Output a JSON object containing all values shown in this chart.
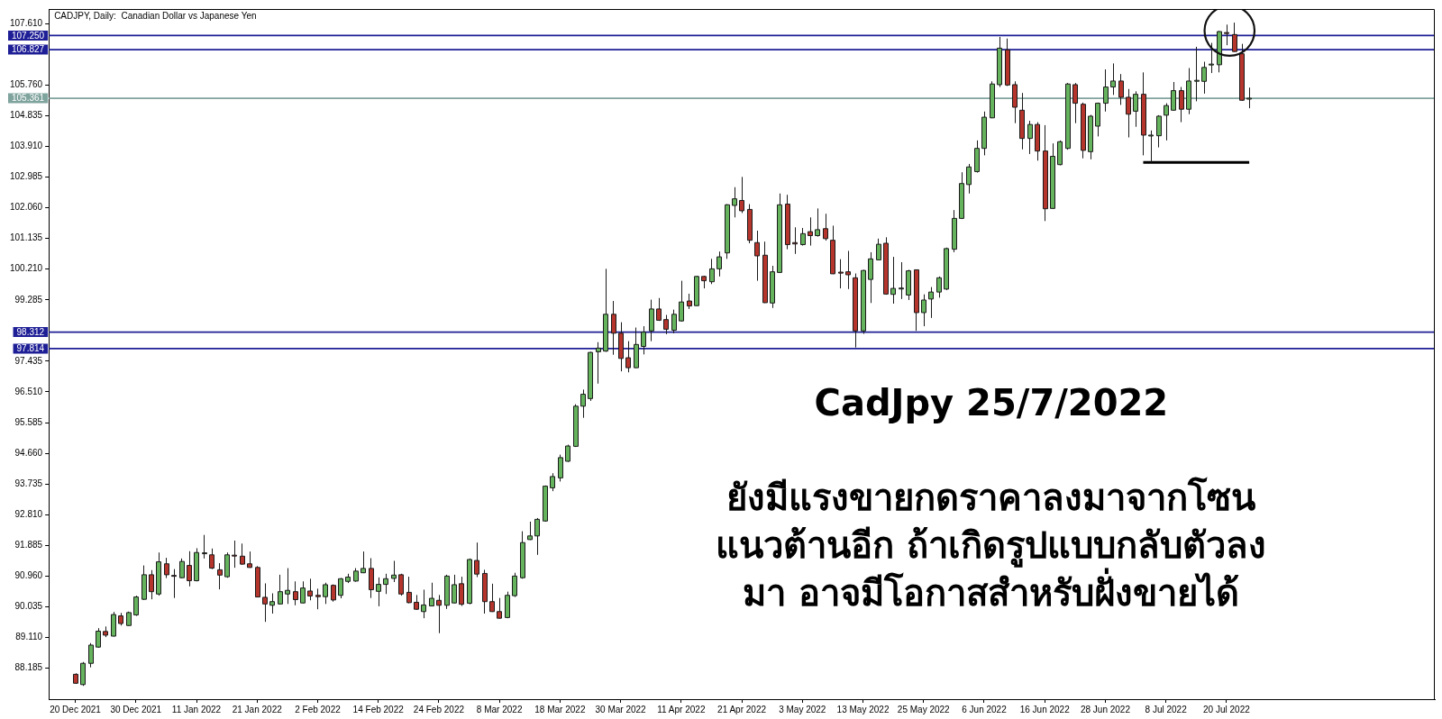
{
  "chart_data": {
    "type": "candlestick",
    "title": "CADJPY, Daily:  Canadian Dollar vs Japanese Yen",
    "categories": [
      "20 Dec 2021",
      null,
      null,
      null,
      null,
      null,
      null,
      null,
      "30 Dec 2021",
      null,
      null,
      null,
      null,
      null,
      null,
      null,
      "11 Jan 2022",
      null,
      null,
      null,
      null,
      null,
      null,
      null,
      "21 Jan 2022",
      null,
      null,
      null,
      null,
      null,
      null,
      null,
      "2 Feb 2022",
      null,
      null,
      null,
      null,
      null,
      null,
      null,
      "14 Feb 2022",
      null,
      null,
      null,
      null,
      null,
      null,
      null,
      "24 Feb 2022",
      null,
      null,
      null,
      null,
      null,
      null,
      null,
      "8 Mar 2022",
      null,
      null,
      null,
      null,
      null,
      null,
      null,
      "18 Mar 2022",
      null,
      null,
      null,
      null,
      null,
      null,
      null,
      "30 Mar 2022",
      null,
      null,
      null,
      null,
      null,
      null,
      null,
      "11 Apr 2022",
      null,
      null,
      null,
      null,
      null,
      null,
      null,
      "21 Apr 2022",
      null,
      null,
      null,
      null,
      null,
      null,
      null,
      "3 May 2022",
      null,
      null,
      null,
      null,
      null,
      null,
      null,
      "13 May 2022",
      null,
      null,
      null,
      null,
      null,
      null,
      null,
      "25 May 2022",
      null,
      null,
      null,
      null,
      null,
      null,
      null,
      "6 Jun 2022",
      null,
      null,
      null,
      null,
      null,
      null,
      null,
      "16 Jun 2022",
      null,
      null,
      null,
      null,
      null,
      null,
      null,
      "28 Jun 2022",
      null,
      null,
      null,
      null,
      null,
      null,
      null,
      "8 Jul 2022",
      null,
      null,
      null,
      null,
      null,
      null,
      null,
      "20 Jul 2022",
      null,
      null,
      null
    ],
    "ohlc": [
      [
        88.0,
        88.03,
        87.71,
        87.73
      ],
      [
        87.69,
        88.37,
        87.65,
        88.33
      ],
      [
        88.33,
        88.94,
        88.21,
        88.88
      ],
      [
        88.82,
        89.39,
        88.8,
        89.3
      ],
      [
        89.29,
        89.44,
        89.12,
        89.18
      ],
      [
        89.15,
        89.88,
        89.14,
        89.8
      ],
      [
        89.76,
        89.85,
        89.47,
        89.53
      ],
      [
        89.47,
        89.89,
        89.46,
        89.86
      ],
      [
        89.79,
        90.37,
        89.76,
        90.33
      ],
      [
        90.26,
        91.28,
        90.24,
        91.0
      ],
      [
        91.0,
        91.14,
        90.26,
        90.49
      ],
      [
        90.42,
        91.67,
        90.37,
        91.39
      ],
      [
        91.33,
        91.51,
        90.9,
        91.0
      ],
      [
        90.98,
        91.17,
        90.3,
        90.96
      ],
      [
        90.91,
        91.49,
        90.9,
        91.4
      ],
      [
        91.28,
        91.71,
        90.65,
        90.82
      ],
      [
        90.82,
        91.8,
        90.8,
        91.67
      ],
      [
        91.64,
        92.2,
        91.49,
        91.66
      ],
      [
        91.6,
        91.79,
        91.17,
        91.2
      ],
      [
        91.15,
        91.35,
        90.56,
        90.99
      ],
      [
        90.94,
        91.67,
        90.91,
        91.6
      ],
      [
        91.59,
        92.03,
        91.21,
        91.57
      ],
      [
        91.56,
        91.94,
        91.3,
        91.32
      ],
      [
        91.33,
        91.7,
        91.21,
        91.22
      ],
      [
        91.22,
        91.26,
        90.32,
        90.33
      ],
      [
        90.32,
        90.74,
        89.58,
        90.12
      ],
      [
        90.08,
        90.44,
        89.83,
        90.19
      ],
      [
        90.12,
        91.0,
        90.1,
        90.49
      ],
      [
        90.42,
        91.2,
        90.12,
        90.53
      ],
      [
        90.49,
        90.8,
        90.08,
        90.25
      ],
      [
        90.15,
        90.8,
        90.14,
        90.6
      ],
      [
        90.51,
        90.88,
        90.23,
        90.36
      ],
      [
        90.38,
        90.58,
        89.96,
        90.34
      ],
      [
        90.34,
        90.76,
        90.12,
        90.7
      ],
      [
        90.68,
        90.71,
        90.19,
        90.24
      ],
      [
        90.38,
        90.9,
        90.29,
        90.88
      ],
      [
        90.8,
        91.03,
        90.75,
        90.93
      ],
      [
        90.81,
        91.2,
        90.79,
        91.11
      ],
      [
        91.06,
        91.7,
        91.05,
        91.19
      ],
      [
        91.19,
        91.5,
        90.3,
        90.55
      ],
      [
        90.5,
        90.92,
        90.05,
        90.71
      ],
      [
        90.71,
        91.03,
        90.42,
        90.88
      ],
      [
        90.89,
        91.42,
        90.78,
        90.99
      ],
      [
        91.0,
        91.03,
        90.37,
        90.42
      ],
      [
        90.47,
        90.94,
        90.14,
        90.16
      ],
      [
        90.17,
        90.39,
        89.94,
        89.96
      ],
      [
        89.89,
        90.55,
        89.69,
        90.09
      ],
      [
        90.06,
        90.76,
        90.05,
        90.29
      ],
      [
        90.23,
        90.39,
        89.24,
        90.08
      ],
      [
        90.08,
        91.0,
        89.97,
        90.96
      ],
      [
        90.15,
        91.0,
        90.14,
        90.7
      ],
      [
        90.73,
        90.94,
        90.06,
        90.11
      ],
      [
        90.14,
        91.49,
        90.11,
        91.46
      ],
      [
        91.43,
        91.97,
        90.93,
        91.02
      ],
      [
        91.04,
        91.15,
        89.83,
        90.19
      ],
      [
        90.19,
        90.73,
        89.88,
        89.89
      ],
      [
        89.89,
        90.3,
        89.68,
        89.69
      ],
      [
        89.71,
        90.49,
        89.69,
        90.38
      ],
      [
        90.37,
        91.06,
        90.33,
        90.96
      ],
      [
        90.91,
        92.31,
        90.88,
        91.97
      ],
      [
        92.06,
        92.6,
        92.05,
        92.17
      ],
      [
        92.17,
        92.71,
        91.6,
        92.67
      ],
      [
        92.62,
        93.69,
        92.6,
        93.67
      ],
      [
        93.62,
        94.06,
        93.52,
        93.96
      ],
      [
        93.92,
        94.62,
        93.81,
        94.53
      ],
      [
        94.42,
        94.92,
        94.4,
        94.88
      ],
      [
        94.87,
        96.14,
        94.85,
        96.08
      ],
      [
        96.08,
        96.58,
        95.73,
        96.44
      ],
      [
        96.31,
        97.72,
        96.24,
        97.7
      ],
      [
        97.72,
        98.01,
        96.76,
        97.83
      ],
      [
        97.74,
        100.22,
        97.72,
        98.85
      ],
      [
        98.85,
        99.25,
        97.63,
        98.28
      ],
      [
        98.28,
        98.61,
        97.13,
        97.52
      ],
      [
        97.54,
        98.04,
        97.1,
        97.24
      ],
      [
        97.24,
        98.45,
        97.23,
        97.94
      ],
      [
        97.88,
        98.49,
        97.64,
        98.31
      ],
      [
        98.35,
        99.29,
        98.04,
        99.01
      ],
      [
        99.01,
        99.34,
        98.65,
        98.67
      ],
      [
        98.69,
        98.83,
        98.25,
        98.4
      ],
      [
        98.37,
        98.99,
        98.28,
        98.85
      ],
      [
        98.65,
        99.86,
        98.63,
        99.22
      ],
      [
        99.25,
        99.47,
        99.01,
        99.1
      ],
      [
        99.11,
        100.01,
        99.1,
        99.99
      ],
      [
        99.99,
        100.01,
        99.63,
        99.86
      ],
      [
        99.83,
        100.52,
        99.76,
        100.22
      ],
      [
        100.22,
        100.74,
        99.99,
        100.58
      ],
      [
        100.7,
        102.17,
        100.52,
        102.15
      ],
      [
        102.13,
        102.68,
        101.77,
        102.33
      ],
      [
        102.28,
        102.99,
        101.9,
        101.97
      ],
      [
        102.01,
        102.17,
        100.99,
        101.08
      ],
      [
        101.01,
        101.37,
        99.86,
        100.61
      ],
      [
        100.63,
        101.04,
        99.19,
        99.2
      ],
      [
        99.19,
        100.31,
        99.04,
        100.13
      ],
      [
        100.11,
        102.49,
        100.1,
        102.15
      ],
      [
        102.17,
        102.45,
        100.81,
        100.95
      ],
      [
        101.01,
        101.47,
        100.67,
        100.97
      ],
      [
        100.95,
        101.45,
        100.92,
        101.28
      ],
      [
        101.34,
        101.77,
        100.92,
        101.22
      ],
      [
        101.22,
        102.04,
        101.19,
        101.4
      ],
      [
        101.43,
        101.88,
        101.07,
        101.13
      ],
      [
        101.08,
        101.52,
        100.06,
        100.07
      ],
      [
        100.12,
        100.51,
        99.63,
        100.09
      ],
      [
        100.13,
        100.76,
        99.61,
        100.04
      ],
      [
        99.95,
        100.08,
        97.85,
        98.35
      ],
      [
        98.35,
        100.19,
        98.26,
        100.17
      ],
      [
        99.9,
        100.72,
        99.19,
        100.52
      ],
      [
        100.49,
        101.13,
        100.48,
        100.96
      ],
      [
        100.99,
        101.17,
        99.44,
        99.46
      ],
      [
        99.45,
        100.58,
        99.17,
        99.63
      ],
      [
        99.62,
        100.42,
        99.31,
        99.64
      ],
      [
        99.43,
        100.19,
        99.28,
        100.16
      ],
      [
        100.19,
        100.2,
        98.35,
        98.9
      ],
      [
        98.9,
        99.45,
        98.49,
        99.28
      ],
      [
        99.31,
        99.67,
        98.74,
        99.52
      ],
      [
        99.52,
        99.99,
        99.35,
        99.95
      ],
      [
        99.61,
        100.86,
        99.58,
        100.83
      ],
      [
        100.81,
        101.99,
        100.72,
        101.74
      ],
      [
        101.74,
        103.13,
        101.72,
        102.79
      ],
      [
        102.76,
        103.38,
        102.49,
        103.29
      ],
      [
        103.15,
        104.09,
        103.12,
        103.85
      ],
      [
        103.85,
        104.96,
        103.64,
        104.79
      ],
      [
        104.77,
        105.87,
        104.76,
        105.79
      ],
      [
        105.77,
        107.21,
        105.7,
        106.87
      ],
      [
        106.82,
        107.16,
        105.73,
        105.76
      ],
      [
        105.77,
        105.87,
        104.61,
        105.09
      ],
      [
        105.0,
        105.52,
        103.82,
        104.15
      ],
      [
        104.15,
        104.68,
        103.68,
        104.57
      ],
      [
        104.57,
        104.64,
        103.48,
        103.77
      ],
      [
        103.77,
        104.55,
        101.66,
        102.03
      ],
      [
        102.04,
        104.0,
        102.03,
        103.61
      ],
      [
        103.36,
        104.09,
        103.34,
        104.05
      ],
      [
        103.85,
        105.82,
        103.81,
        105.79
      ],
      [
        105.77,
        105.82,
        104.61,
        105.21
      ],
      [
        105.18,
        105.23,
        103.55,
        103.79
      ],
      [
        103.75,
        104.86,
        103.52,
        104.82
      ],
      [
        104.52,
        105.23,
        104.21,
        105.21
      ],
      [
        105.21,
        106.23,
        104.96,
        105.7
      ],
      [
        105.7,
        106.41,
        105.46,
        105.88
      ],
      [
        105.88,
        106.09,
        105.16,
        105.39
      ],
      [
        105.39,
        105.64,
        104.18,
        104.88
      ],
      [
        104.97,
        105.57,
        104.5,
        105.48
      ],
      [
        105.48,
        106.14,
        103.64,
        104.25
      ],
      [
        104.23,
        104.39,
        103.43,
        104.25
      ],
      [
        104.23,
        104.85,
        103.88,
        104.82
      ],
      [
        104.85,
        105.21,
        104.09,
        105.14
      ],
      [
        105.0,
        105.85,
        104.99,
        105.59
      ],
      [
        105.59,
        105.7,
        104.64,
        105.03
      ],
      [
        105.03,
        106.27,
        104.88,
        105.88
      ],
      [
        105.88,
        106.91,
        105.27,
        105.9
      ],
      [
        105.87,
        106.46,
        105.5,
        106.29
      ],
      [
        106.37,
        107.03,
        106.12,
        106.39
      ],
      [
        106.37,
        107.39,
        106.14,
        107.37
      ],
      [
        107.34,
        107.58,
        106.96,
        107.32
      ],
      [
        107.28,
        107.64,
        106.76,
        106.77
      ],
      [
        106.7,
        107.0,
        105.28,
        105.3
      ],
      [
        105.34,
        105.68,
        105.06,
        105.361
      ]
    ],
    "colors": [
      "#b5352c",
      "#66b35e",
      "#66b35e",
      "#66b35e",
      "#b5352c",
      "#66b35e",
      "#b5352c",
      "#66b35e",
      "#66b35e",
      "#66b35e",
      "#b5352c",
      "#66b35e",
      "#b5352c",
      "#b5352c",
      "#66b35e",
      "#b5352c",
      "#66b35e",
      "#66b35e",
      "#b5352c",
      "#b5352c",
      "#66b35e",
      "#b5352c",
      "#b5352c",
      "#b5352c",
      "#b5352c",
      "#b5352c",
      "#66b35e",
      "#66b35e",
      "#66b35e",
      "#b5352c",
      "#66b35e",
      "#b5352c",
      "#b5352c",
      "#66b35e",
      "#b5352c",
      "#66b35e",
      "#66b35e",
      "#66b35e",
      "#66b35e",
      "#b5352c",
      "#66b35e",
      "#66b35e",
      "#66b35e",
      "#b5352c",
      "#b5352c",
      "#b5352c",
      "#66b35e",
      "#66b35e",
      "#b5352c",
      "#66b35e",
      "#66b35e",
      "#b5352c",
      "#66b35e",
      "#b5352c",
      "#b5352c",
      "#b5352c",
      "#b5352c",
      "#66b35e",
      "#66b35e",
      "#66b35e",
      "#66b35e",
      "#66b35e",
      "#66b35e",
      "#66b35e",
      "#66b35e",
      "#66b35e",
      "#66b35e",
      "#66b35e",
      "#66b35e",
      "#66b35e",
      "#66b35e",
      "#b5352c",
      "#b5352c",
      "#b5352c",
      "#66b35e",
      "#66b35e",
      "#66b35e",
      "#b5352c",
      "#b5352c",
      "#66b35e",
      "#66b35e",
      "#b5352c",
      "#66b35e",
      "#b5352c",
      "#66b35e",
      "#66b35e",
      "#66b35e",
      "#66b35e",
      "#b5352c",
      "#b5352c",
      "#b5352c",
      "#b5352c",
      "#66b35e",
      "#66b35e",
      "#b5352c",
      "#b5352c",
      "#66b35e",
      "#b5352c",
      "#66b35e",
      "#b5352c",
      "#b5352c",
      "#b5352c",
      "#b5352c",
      "#b5352c",
      "#66b35e",
      "#66b35e",
      "#66b35e",
      "#b5352c",
      "#66b35e",
      "#66b35e",
      "#66b35e",
      "#b5352c",
      "#66b35e",
      "#66b35e",
      "#66b35e",
      "#66b35e",
      "#66b35e",
      "#66b35e",
      "#66b35e",
      "#66b35e",
      "#66b35e",
      "#66b35e",
      "#66b35e",
      "#b5352c",
      "#b5352c",
      "#b5352c",
      "#66b35e",
      "#b5352c",
      "#b5352c",
      "#66b35e",
      "#66b35e",
      "#66b35e",
      "#b5352c",
      "#b5352c",
      "#66b35e",
      "#66b35e",
      "#66b35e",
      "#66b35e",
      "#b5352c",
      "#b5352c",
      "#66b35e",
      "#b5352c",
      "#66b35e",
      "#66b35e",
      "#66b35e",
      "#66b35e",
      "#b5352c",
      "#66b35e",
      "#66b35e",
      "#66b35e",
      "#66b35e",
      "#66b35e",
      "#b5352c",
      "#b5352c",
      "#b5352c",
      "#66b35e"
    ],
    "series": [
      {
        "type": "line",
        "color": "#000000",
        "values": [
          null,
          null,
          null,
          null,
          null,
          null,
          null,
          null,
          null,
          null,
          null,
          null,
          null,
          null,
          null,
          null,
          null,
          null,
          null,
          null,
          null,
          null,
          null,
          null,
          null,
          null,
          null,
          null,
          null,
          null,
          null,
          null,
          null,
          null,
          null,
          null,
          null,
          null,
          null,
          null,
          null,
          null,
          null,
          null,
          null,
          null,
          null,
          null,
          null,
          null,
          null,
          null,
          null,
          null,
          null,
          null,
          null,
          null,
          null,
          null,
          null,
          null,
          null,
          null,
          null,
          null,
          null,
          null,
          null,
          null,
          null,
          null,
          null,
          null,
          null,
          null,
          null,
          null,
          null,
          null,
          null,
          null,
          null,
          null,
          null,
          null,
          null,
          null,
          null,
          null,
          null,
          null,
          null,
          null,
          null,
          null,
          null,
          null,
          null,
          null,
          null,
          null,
          null,
          null,
          null,
          null,
          null,
          null,
          null,
          null,
          null,
          null,
          null,
          null,
          null,
          null,
          null,
          null,
          null,
          null,
          null,
          null,
          null,
          null,
          null,
          null,
          null,
          null,
          null,
          null,
          null,
          null,
          null,
          null,
          null,
          null,
          null,
          null,
          null,
          null,
          null,
          103.43,
          103.43,
          103.43,
          103.43,
          103.43,
          103.43,
          103.43,
          103.43,
          103.43,
          103.43,
          103.43,
          103.43,
          103.43,
          103.43,
          103.43
        ]
      }
    ],
    "ylim": [
      87.25,
      108.05
    ],
    "yticks": [
      {
        "value": 88.185,
        "label": "88.185"
      },
      {
        "value": 89.11,
        "label": "89.110"
      },
      {
        "value": 90.035,
        "label": "90.035"
      },
      {
        "value": 90.96,
        "label": "90.960"
      },
      {
        "value": 91.885,
        "label": "91.885"
      },
      {
        "value": 92.81,
        "label": "92.810"
      },
      {
        "value": 93.735,
        "label": "93.735"
      },
      {
        "value": 94.66,
        "label": "94.660"
      },
      {
        "value": 95.585,
        "label": "95.585"
      },
      {
        "value": 96.51,
        "label": "96.510"
      },
      {
        "value": 97.435,
        "label": "97.435"
      },
      {
        "value": 99.285,
        "label": "99.285"
      },
      {
        "value": 100.21,
        "label": "100.210"
      },
      {
        "value": 101.135,
        "label": "101.135"
      },
      {
        "value": 102.06,
        "label": "102.060"
      },
      {
        "value": 102.985,
        "label": "102.985"
      },
      {
        "value": 103.91,
        "label": "103.910"
      },
      {
        "value": 104.835,
        "label": "104.835"
      },
      {
        "value": 105.76,
        "label": "105.760"
      },
      {
        "value": 107.61,
        "label": "107.610"
      }
    ],
    "ref_lines": [
      {
        "axis": "y",
        "value": 107.25,
        "label": "107.250",
        "color": "#1e1e96"
      },
      {
        "axis": "y",
        "value": 106.827,
        "label": "106.827",
        "color": "#1e1e96"
      },
      {
        "axis": "y",
        "value": 105.361,
        "label": "105.361",
        "color": "#7fa39d"
      },
      {
        "axis": "y",
        "value": 98.312,
        "label": "98.312",
        "color": "#1e1e96"
      },
      {
        "axis": "y",
        "value": 97.814,
        "label": "97.814",
        "color": "#1e1e96"
      }
    ],
    "annotations": [
      "CadJpy 25/7/2022",
      "ยังมีแรงขายกดราคาลงมาจากโซน\nแนวต้านอีก ถ้าเกิดรูปแบบกลับตัวลง\nมา อาจมีโอกาสสำหรับฝั่งขายได้"
    ]
  }
}
